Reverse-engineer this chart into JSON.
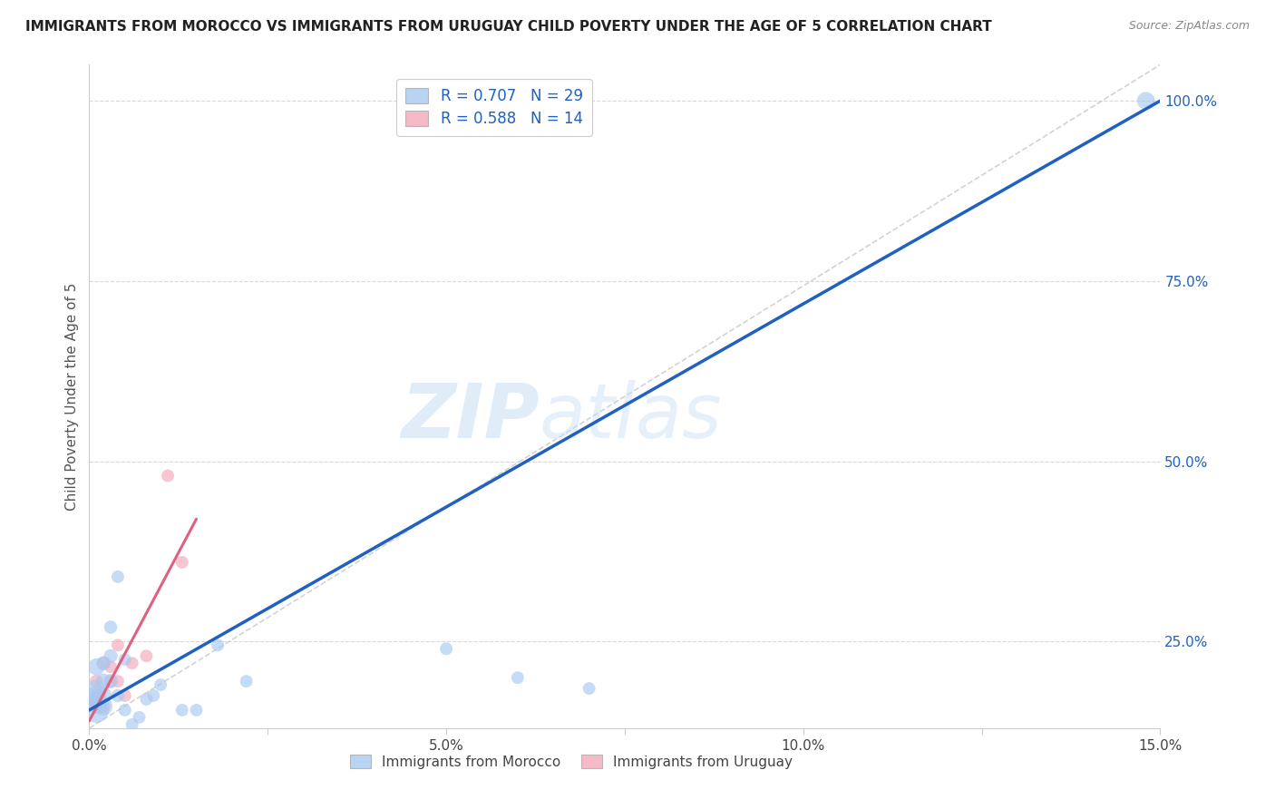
{
  "title": "IMMIGRANTS FROM MOROCCO VS IMMIGRANTS FROM URUGUAY CHILD POVERTY UNDER THE AGE OF 5 CORRELATION CHART",
  "source": "Source: ZipAtlas.com",
  "ylabel": "Child Poverty Under the Age of 5",
  "xlim": [
    0.0,
    0.15
  ],
  "ylim": [
    0.13,
    1.05
  ],
  "xticks": [
    0.0,
    0.025,
    0.05,
    0.075,
    0.1,
    0.125,
    0.15
  ],
  "xticklabels": [
    "0.0%",
    "",
    "5.0%",
    "",
    "10.0%",
    "",
    "15.0%"
  ],
  "yticks": [
    0.25,
    0.5,
    0.75,
    1.0
  ],
  "yticklabels": [
    "25.0%",
    "50.0%",
    "75.0%",
    "100.0%"
  ],
  "morocco_color": "#a8c8f0",
  "uruguay_color": "#f4a8b8",
  "morocco_line_color": "#2060c0",
  "uruguay_line_color": "#e06080",
  "ref_line_color": "#c8c8c8",
  "morocco_R": 0.707,
  "morocco_N": 29,
  "uruguay_R": 0.588,
  "uruguay_N": 14,
  "watermark_zip": "ZIP",
  "watermark_atlas": "atlas",
  "background_color": "#ffffff",
  "morocco_x": [
    0.001,
    0.001,
    0.001,
    0.001,
    0.001,
    0.002,
    0.002,
    0.002,
    0.002,
    0.003,
    0.003,
    0.003,
    0.004,
    0.004,
    0.005,
    0.005,
    0.006,
    0.007,
    0.008,
    0.009,
    0.01,
    0.013,
    0.015,
    0.018,
    0.022,
    0.05,
    0.06,
    0.07,
    0.148
  ],
  "morocco_y": [
    0.155,
    0.165,
    0.175,
    0.185,
    0.215,
    0.16,
    0.175,
    0.195,
    0.22,
    0.195,
    0.23,
    0.27,
    0.175,
    0.34,
    0.155,
    0.225,
    0.135,
    0.145,
    0.17,
    0.175,
    0.19,
    0.155,
    0.155,
    0.245,
    0.195,
    0.24,
    0.2,
    0.185,
    1.0
  ],
  "morocco_sizes": [
    400,
    300,
    250,
    200,
    180,
    200,
    170,
    150,
    130,
    130,
    120,
    110,
    110,
    100,
    100,
    100,
    100,
    100,
    100,
    100,
    100,
    100,
    100,
    100,
    100,
    100,
    100,
    100,
    200
  ],
  "uruguay_x": [
    0.001,
    0.001,
    0.001,
    0.002,
    0.002,
    0.003,
    0.003,
    0.004,
    0.004,
    0.005,
    0.006,
    0.008,
    0.011,
    0.013
  ],
  "uruguay_y": [
    0.165,
    0.175,
    0.195,
    0.16,
    0.22,
    0.195,
    0.215,
    0.195,
    0.245,
    0.175,
    0.22,
    0.23,
    0.48,
    0.36
  ],
  "uruguay_sizes": [
    150,
    130,
    110,
    110,
    100,
    100,
    100,
    100,
    100,
    100,
    100,
    100,
    100,
    100
  ],
  "morocco_line_x": [
    0.0,
    0.15
  ],
  "morocco_line_y": [
    0.155,
    1.0
  ],
  "uruguay_line_x": [
    0.0,
    0.015
  ],
  "uruguay_line_y": [
    0.14,
    0.42
  ],
  "ref_line_x": [
    0.0,
    0.15
  ],
  "ref_line_y": [
    0.13,
    1.05
  ]
}
